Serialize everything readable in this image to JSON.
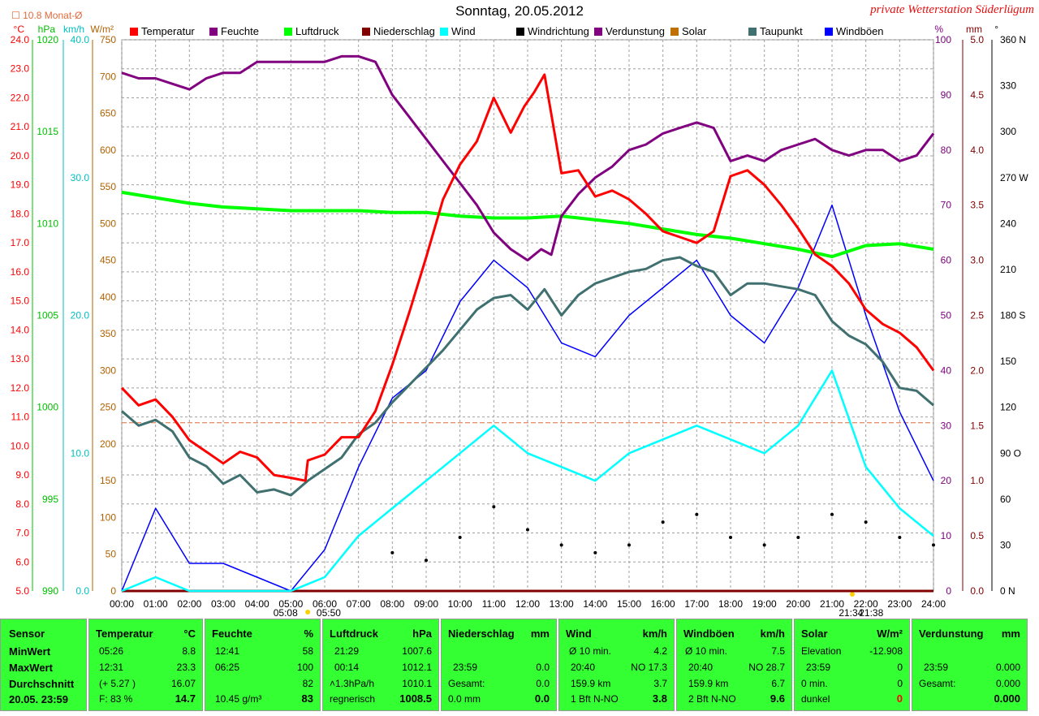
{
  "title": "Sonntag, 20.05.2012",
  "site": "private Wetterstation Süderlügum",
  "monat": "10.8 Monat-Ø",
  "units_top": {
    "celsius": "°C",
    "hpa": "hPa",
    "kmh": "km/h",
    "wm2": "W/m²",
    "pct": "%",
    "mm": "mm",
    "deg": "°"
  },
  "legend": [
    {
      "label": "Temperatur",
      "color": "#ff0000"
    },
    {
      "label": "Feuchte",
      "color": "#800080"
    },
    {
      "label": "Luftdruck",
      "color": "#00ff00"
    },
    {
      "label": "Niederschlag",
      "color": "#800000"
    },
    {
      "label": "Wind",
      "color": "#00ffff"
    },
    {
      "label": "Windrichtung",
      "color": "#000000"
    },
    {
      "label": "Verdunstung",
      "color": "#800080"
    },
    {
      "label": "Solar",
      "color": "#c07000"
    },
    {
      "label": "Taupunkt",
      "color": "#407070"
    },
    {
      "label": "Windböen",
      "color": "#0000ff"
    }
  ],
  "chart_data": {
    "type": "line",
    "xlabel": "",
    "x_ticks": [
      "00:00",
      "01:00",
      "02:00",
      "03:00",
      "04:00",
      "05:00",
      "06:00",
      "07:00",
      "08:00",
      "09:00",
      "10:00",
      "11:00",
      "12:00",
      "13:00",
      "14:00",
      "15:00",
      "16:00",
      "17:00",
      "18:00",
      "19:00",
      "20:00",
      "21:00",
      "22:00",
      "23:00",
      "24:00"
    ],
    "x_annotations": [
      "05:08",
      "05:50",
      "21:34",
      "21:38"
    ],
    "axes": {
      "temperature": {
        "unit": "°C",
        "range": [
          5.0,
          24.0
        ],
        "ticks": [
          "24.0",
          "23.0",
          "22.0",
          "21.0",
          "20.0",
          "19.0",
          "18.0",
          "17.0",
          "16.0",
          "15.0",
          "14.0",
          "13.0",
          "12.0",
          "11.0",
          "10.0",
          "9.0",
          "8.0",
          "7.0",
          "6.0",
          "5.0"
        ]
      },
      "pressure": {
        "unit": "hPa",
        "range": [
          990,
          1020
        ],
        "ticks": [
          "1020",
          "1015",
          "1010",
          "1005",
          "1000",
          "995",
          "990"
        ]
      },
      "wind": {
        "unit": "km/h",
        "range": [
          0,
          40
        ],
        "ticks": [
          "40.0",
          "30.0",
          "20.0",
          "10.0",
          "0.0"
        ]
      },
      "solar": {
        "unit": "W/m²",
        "range": [
          0,
          750
        ],
        "ticks": [
          "750",
          "700",
          "650",
          "600",
          "550",
          "500",
          "450",
          "400",
          "350",
          "300",
          "250",
          "200",
          "150",
          "100",
          "50",
          "0"
        ]
      },
      "humidity": {
        "unit": "%",
        "range": [
          0,
          100
        ],
        "ticks": [
          "100",
          "90",
          "80",
          "70",
          "60",
          "50",
          "40",
          "30",
          "20",
          "10",
          "0"
        ]
      },
      "rain": {
        "unit": "mm",
        "range": [
          0,
          5
        ],
        "ticks": [
          "5.0",
          "4.5",
          "4.0",
          "3.5",
          "3.0",
          "2.5",
          "2.0",
          "1.5",
          "1.0",
          "0.5",
          "0.0"
        ]
      },
      "direction": {
        "unit": "°",
        "range": [
          0,
          360
        ],
        "ticks": [
          "360 N",
          "330",
          "300",
          "270 W",
          "240",
          "210",
          "180 S",
          "150",
          "120",
          "90 O",
          "60",
          "30",
          "0   N"
        ]
      }
    },
    "series": [
      {
        "name": "Temperatur",
        "axis": "temperature",
        "color": "#ff0000",
        "x": [
          0,
          0.5,
          1.0,
          1.5,
          2.0,
          2.5,
          3.0,
          3.5,
          4.0,
          4.5,
          5.0,
          5.43,
          5.5,
          6.0,
          6.5,
          7.0,
          7.5,
          8.0,
          8.5,
          9.0,
          9.5,
          10.0,
          10.5,
          11.0,
          11.5,
          11.9,
          12.2,
          12.5,
          13.0,
          13.5,
          14.0,
          14.5,
          15.0,
          15.5,
          16.0,
          16.5,
          17.0,
          17.5,
          18.0,
          18.5,
          19.0,
          19.5,
          20.0,
          20.5,
          21.0,
          21.5,
          22.0,
          22.5,
          23.0,
          23.5,
          24.0
        ],
        "y": [
          12.0,
          11.4,
          11.6,
          11.0,
          10.2,
          9.8,
          9.4,
          9.8,
          9.6,
          9.0,
          8.9,
          8.8,
          9.5,
          9.7,
          10.3,
          10.3,
          11.2,
          12.8,
          14.6,
          16.5,
          18.5,
          19.7,
          20.5,
          22.0,
          20.8,
          21.7,
          22.2,
          22.8,
          19.4,
          19.5,
          18.6,
          18.8,
          18.5,
          18.0,
          17.4,
          17.2,
          17.0,
          17.4,
          19.3,
          19.5,
          19.0,
          18.3,
          17.5,
          16.6,
          16.2,
          15.6,
          14.7,
          14.2,
          13.9,
          13.4,
          12.6
        ]
      },
      {
        "name": "Feuchte",
        "axis": "humidity",
        "color": "#800080",
        "x": [
          0,
          0.5,
          1.0,
          1.5,
          2.0,
          2.5,
          3.0,
          3.5,
          4.0,
          4.5,
          5.0,
          5.5,
          6.0,
          6.5,
          7.0,
          7.5,
          8.0,
          8.5,
          9.0,
          9.5,
          10.0,
          10.5,
          11.0,
          11.5,
          12.0,
          12.4,
          12.7,
          13.0,
          13.5,
          14.0,
          14.5,
          15.0,
          15.5,
          16.0,
          16.5,
          17.0,
          17.5,
          18.0,
          18.5,
          19.0,
          19.5,
          20.0,
          20.5,
          21.0,
          21.5,
          22.0,
          22.5,
          23.0,
          23.5,
          24.0
        ],
        "y": [
          94,
          93,
          93,
          92,
          91,
          93,
          94,
          94,
          96,
          96,
          96,
          96,
          96,
          97,
          97,
          96,
          90,
          86,
          82,
          78,
          74,
          70,
          65,
          62,
          60,
          62,
          61,
          68,
          72,
          75,
          77,
          80,
          81,
          83,
          84,
          85,
          84,
          78,
          79,
          78,
          80,
          81,
          82,
          80,
          79,
          80,
          80,
          78,
          79,
          83
        ]
      },
      {
        "name": "Luftdruck",
        "axis": "pressure",
        "color": "#00ff00",
        "x": [
          0,
          1,
          2,
          3,
          4,
          5,
          6,
          7,
          8,
          9,
          10,
          11,
          12,
          13,
          14,
          15,
          16,
          17,
          18,
          19,
          20,
          21,
          22,
          23,
          24
        ],
        "y": [
          1011.7,
          1011.4,
          1011.1,
          1010.9,
          1010.8,
          1010.7,
          1010.7,
          1010.7,
          1010.6,
          1010.6,
          1010.4,
          1010.3,
          1010.3,
          1010.4,
          1010.2,
          1010.0,
          1009.7,
          1009.4,
          1009.2,
          1008.9,
          1008.6,
          1008.2,
          1008.8,
          1008.9,
          1008.6
        ]
      },
      {
        "name": "Taupunkt",
        "axis": "temperature",
        "color": "#407070",
        "x": [
          0,
          0.5,
          1.0,
          1.5,
          2.0,
          2.5,
          3.0,
          3.5,
          4.0,
          4.5,
          5.0,
          5.5,
          6.0,
          6.5,
          7.0,
          7.5,
          8.0,
          8.5,
          9.0,
          9.5,
          10.0,
          10.5,
          11.0,
          11.5,
          12.0,
          12.5,
          13.0,
          13.5,
          14.0,
          14.5,
          15.0,
          15.5,
          16.0,
          16.5,
          17.0,
          17.5,
          18.0,
          18.5,
          19.0,
          19.5,
          20.0,
          20.5,
          21.0,
          21.5,
          22.0,
          22.5,
          23.0,
          23.5,
          24.0
        ],
        "y": [
          11.2,
          10.7,
          10.9,
          10.5,
          9.6,
          9.3,
          8.7,
          9.0,
          8.4,
          8.5,
          8.3,
          8.8,
          9.2,
          9.6,
          10.4,
          10.8,
          11.5,
          12.1,
          12.7,
          13.3,
          14.0,
          14.7,
          15.1,
          15.2,
          14.7,
          15.4,
          14.5,
          15.2,
          15.6,
          15.8,
          16.0,
          16.1,
          16.4,
          16.5,
          16.2,
          16.0,
          15.2,
          15.6,
          15.6,
          15.5,
          15.4,
          15.2,
          14.3,
          13.8,
          13.5,
          12.9,
          12.0,
          11.9,
          11.4
        ]
      },
      {
        "name": "Windböen",
        "axis": "wind",
        "color": "#0000ff",
        "x": [
          0,
          1,
          2,
          3,
          4,
          5,
          6,
          7,
          8,
          9,
          10,
          11,
          12,
          13,
          14,
          15,
          16,
          17,
          18,
          19,
          20,
          21,
          22,
          23,
          24
        ],
        "y": [
          0,
          6,
          2,
          2,
          1,
          0,
          3,
          9,
          14,
          16,
          21,
          24,
          22,
          18,
          17,
          20,
          22,
          24,
          20,
          18,
          22,
          28,
          20,
          13,
          8
        ]
      },
      {
        "name": "Wind",
        "axis": "wind",
        "color": "#00ffff",
        "x": [
          0,
          1,
          2,
          3,
          4,
          5,
          6,
          7,
          8,
          9,
          10,
          11,
          12,
          13,
          14,
          15,
          16,
          17,
          18,
          19,
          20,
          21,
          22,
          23,
          24
        ],
        "y": [
          0,
          1,
          0,
          0,
          0,
          0,
          1,
          4,
          6,
          8,
          10,
          12,
          10,
          9,
          8,
          10,
          11,
          12,
          11,
          10,
          12,
          16,
          9,
          6,
          4
        ]
      },
      {
        "name": "Windrichtung",
        "axis": "direction",
        "color": "#000000",
        "x": [
          8,
          9,
          10,
          11,
          12,
          13,
          14,
          15,
          16,
          17,
          18,
          19,
          20,
          21,
          22,
          23,
          24
        ],
        "y": [
          25,
          20,
          35,
          55,
          40,
          30,
          25,
          30,
          45,
          50,
          35,
          30,
          35,
          50,
          45,
          35,
          30
        ]
      },
      {
        "name": "Niederschlag",
        "axis": "rain",
        "color": "#800000",
        "x": [
          0,
          24
        ],
        "y": [
          0,
          0
        ]
      }
    ],
    "reference_lines": [
      {
        "name": "Monat-Ø",
        "axis": "temperature",
        "value": 10.8,
        "color": "#e06a3c"
      }
    ]
  },
  "stats": {
    "sensor": {
      "header": "Sensor",
      "min": "MinWert",
      "max": "MaxWert",
      "avg": "Durchschnitt",
      "stamp": "20.05. 23:59"
    },
    "temperatur": {
      "header": "Temperatur",
      "unit": "°C",
      "min_t": "05:26",
      "min_v": "8.8",
      "max_t": "12:31",
      "max_v": "23.3",
      "avg_t": "(+ 5.27 )",
      "avg_v": "16.07",
      "f_l": "F: 83 %",
      "f_v": "14.7"
    },
    "feuchte": {
      "header": "Feuchte",
      "unit": "%",
      "min_t": "12:41",
      "min_v": "58",
      "max_t": "06:25",
      "max_v": "100",
      "avg_v": "82",
      "g_l": "10.45 g/m³",
      "g_v": "83"
    },
    "luftdruck": {
      "header": "Luftdruck",
      "unit": "hPa",
      "min_t": "21:29",
      "min_v": "1007.6",
      "max_t": "00:14",
      "max_v": "1012.1",
      "trend_l": "˄1.3hPa/h",
      "trend_v": "1010.1",
      "wx_l": "regnerisch",
      "wx_v": "1008.5"
    },
    "niederschlag": {
      "header": "Niederschlag",
      "unit": "mm",
      "max_t": "23:59",
      "max_v": "0.0",
      "g_l": "Gesamt:",
      "g_v": "0.0",
      "n_l": "0.0 mm",
      "n_v": "0.0"
    },
    "wind": {
      "header": "Wind",
      "unit": "km/h",
      "r1_l": "Ø 10 min.",
      "r1_v": "4.2",
      "r2_l": "20:40",
      "r2_m": "NO 17.3",
      "r3_l": "159.9 km",
      "r3_v": "3.7",
      "r4_l": "1 Bft N-NO",
      "r4_v": "3.8"
    },
    "windboeen": {
      "header": "Windböen",
      "unit": "km/h",
      "r1_l": "Ø 10 min.",
      "r1_v": "7.5",
      "r2_l": "20:40",
      "r2_m": "NO 28.7",
      "r3_l": "159.9 km",
      "r3_v": "6.7",
      "r4_l": "2 Bft N-NO",
      "r4_v": "9.6"
    },
    "solar": {
      "header": "Solar",
      "unit": "W/m²",
      "r1_l": "Elevation",
      "r1_v": "-12.908",
      "r2_l": "23:59",
      "r2_v": "0",
      "r3_l": "0 min.",
      "r3_v": "0",
      "r4_l": "dunkel",
      "r4_v": "0"
    },
    "verdunstung": {
      "header": "Verdunstung",
      "unit": "mm",
      "r2_l": "23:59",
      "r2_v": "0.000",
      "r3_l": "Gesamt:",
      "r3_v": "0.000",
      "r4_v": "0.000"
    }
  }
}
